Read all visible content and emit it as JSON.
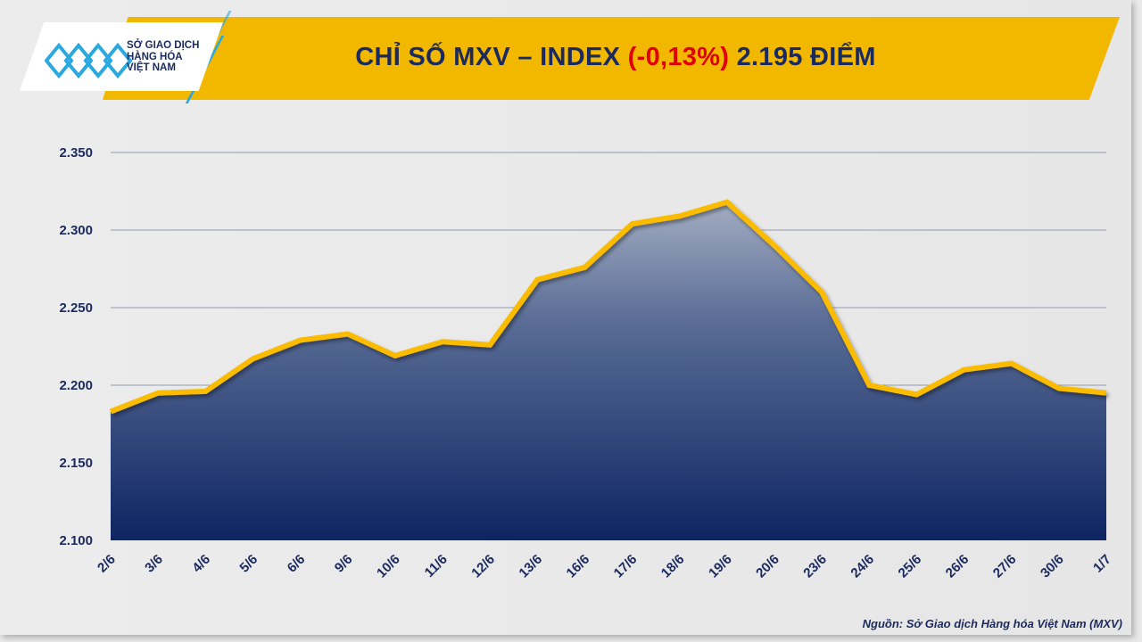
{
  "header": {
    "logo_text": [
      "SỞ GIAO DỊCH",
      "HÀNG HÓA",
      "VIỆT NAM"
    ],
    "title_prefix": "CHỈ SỐ MXV – INDEX ",
    "title_change": "(-0,13%)",
    "title_suffix": " 2.195 ĐIỂM"
  },
  "source": "Nguồn: Sở Giao dịch Hàng hóa Việt Nam (MXV)",
  "colors": {
    "line": "#fbbc05",
    "fill_top": "#94a0b8",
    "fill_bottom": "#0e2563",
    "negative": "#e00000",
    "text": "#1b2a5e"
  },
  "chart_data": {
    "type": "area",
    "title": "CHỈ SỐ MXV – INDEX (-0,13%) 2.195 ĐIỂM",
    "xlabel": "",
    "ylabel": "",
    "categories": [
      "2/6",
      "3/6",
      "4/6",
      "5/6",
      "6/6",
      "9/6",
      "10/6",
      "11/6",
      "12/6",
      "13/6",
      "16/6",
      "17/6",
      "18/6",
      "19/6",
      "20/6",
      "23/6",
      "24/6",
      "25/6",
      "26/6",
      "27/6",
      "30/6",
      "1/7"
    ],
    "values": [
      2183,
      2195,
      2196,
      2217,
      2229,
      2233,
      2219,
      2228,
      2226,
      2268,
      2276,
      2304,
      2309,
      2318,
      2290,
      2260,
      2200,
      2194,
      2210,
      2214,
      2198,
      2195
    ],
    "ylim": [
      2100,
      2350
    ],
    "yticks": [
      2100,
      2150,
      2200,
      2250,
      2300,
      2350
    ],
    "ytick_labels": [
      "2.100",
      "2.150",
      "2.200",
      "2.250",
      "2.300",
      "2.350"
    ],
    "grid": true,
    "legend": "none"
  }
}
